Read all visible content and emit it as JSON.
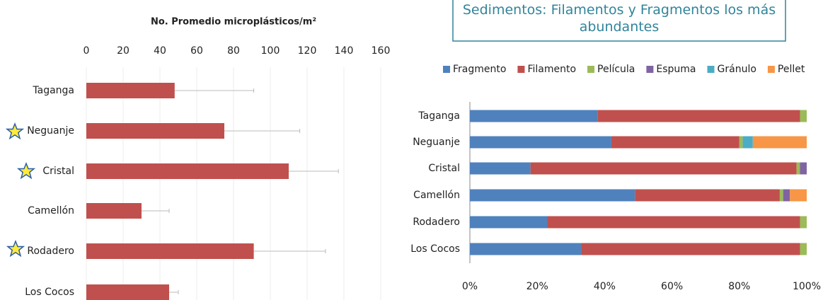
{
  "chart_data": [
    {
      "type": "bar",
      "orientation": "horizontal",
      "title": "No. Promedio microplásticos/m²",
      "categories": [
        "Taganga",
        "Neguanje",
        "Cristal",
        "Camellón",
        "Rodadero",
        "Los Cocos"
      ],
      "values": [
        48,
        75,
        110,
        30,
        91,
        45
      ],
      "errors": [
        43,
        41,
        27,
        15,
        39,
        5
      ],
      "color": "#c0504d",
      "xlim": [
        0,
        160
      ],
      "xticks": [
        0,
        20,
        40,
        60,
        80,
        100,
        120,
        140,
        160
      ],
      "grid": true
    },
    {
      "type": "stacked_bar",
      "orientation": "horizontal",
      "title": "Sedimentos: Filamentos y Fragmentos los más abundantes",
      "categories": [
        "Taganga",
        "Neguanje",
        "Cristal",
        "Camellón",
        "Rodadero",
        "Los Cocos"
      ],
      "series": [
        {
          "name": "Fragmento",
          "color": "#4f81bd",
          "values": [
            38,
            42,
            18,
            49,
            23,
            33
          ]
        },
        {
          "name": "Filamento",
          "color": "#c0504d",
          "values": [
            60,
            38,
            79,
            43,
            75,
            65
          ]
        },
        {
          "name": "Película",
          "color": "#9bbb59",
          "values": [
            2,
            1,
            1,
            1,
            2,
            2
          ]
        },
        {
          "name": "Espuma",
          "color": "#8064a2",
          "values": [
            0,
            0,
            2,
            2,
            0,
            0
          ]
        },
        {
          "name": "Gránulo",
          "color": "#4bacc6",
          "values": [
            0,
            3,
            0,
            0,
            0,
            0
          ]
        },
        {
          "name": "Pellet",
          "color": "#f79646",
          "values": [
            0,
            16,
            0,
            5,
            0,
            0
          ]
        }
      ],
      "xlim": [
        0,
        100
      ],
      "xticks": [
        {
          "value": 0,
          "label": "0%"
        },
        {
          "value": 20,
          "label": "20%"
        },
        {
          "value": 40,
          "label": "40%"
        },
        {
          "value": 60,
          "label": "60%"
        },
        {
          "value": 80,
          "label": "80%"
        },
        {
          "value": 100,
          "label": "100%"
        }
      ],
      "legend": "top"
    }
  ]
}
